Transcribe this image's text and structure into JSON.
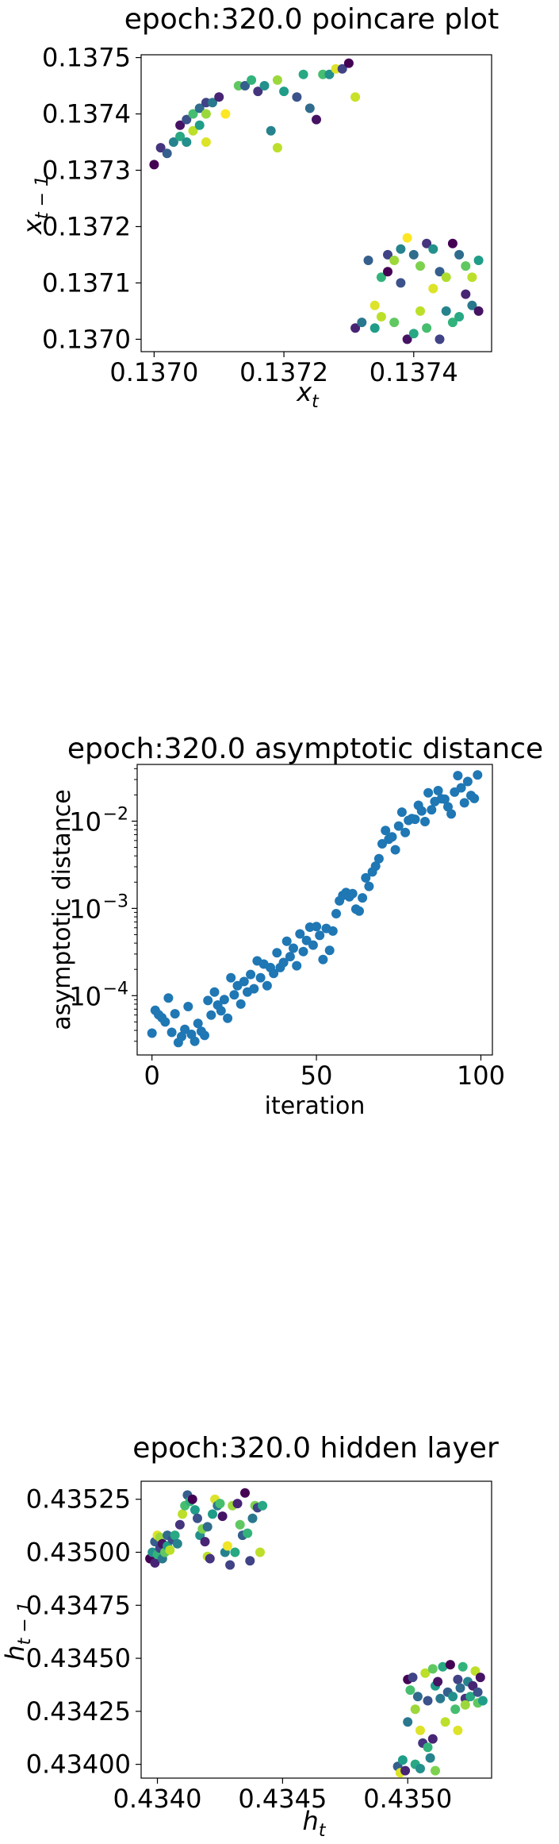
{
  "chart_data": [
    {
      "type": "scatter",
      "title": "epoch:320.0 poincare plot",
      "xlabel_base": "x",
      "xlabel_sub": "t",
      "ylabel_base": "x",
      "ylabel_sub": "t − 1",
      "xlim": [
        0.13698,
        0.13752
      ],
      "ylim": [
        0.136978,
        0.137505
      ],
      "xticks": [
        0.137,
        0.1372,
        0.1374
      ],
      "xtick_labels": [
        "0.1370",
        "0.1372",
        "0.1374"
      ],
      "yticks": [
        0.137,
        0.1371,
        0.1372,
        0.1373,
        0.1374,
        0.1375
      ],
      "ytick_labels": [
        "0.1370",
        "0.1371",
        "0.1372",
        "0.1373",
        "0.1374",
        "0.1375"
      ],
      "yscale": "linear",
      "colormap": "viridis",
      "points": [
        [
          0.137,
          0.13731,
          0
        ],
        [
          0.13701,
          0.13734,
          0.15
        ],
        [
          0.13702,
          0.13733,
          0.3
        ],
        [
          0.13703,
          0.13735,
          0.45
        ],
        [
          0.13704,
          0.13736,
          0.6
        ],
        [
          0.13704,
          0.13738,
          0.05
        ],
        [
          0.13705,
          0.13739,
          0.25
        ],
        [
          0.13705,
          0.13735,
          0.5
        ],
        [
          0.13706,
          0.1374,
          0.7
        ],
        [
          0.13706,
          0.13737,
          0.9
        ],
        [
          0.13707,
          0.13741,
          0.35
        ],
        [
          0.13707,
          0.13738,
          0.55
        ],
        [
          0.13708,
          0.13742,
          0.2
        ],
        [
          0.13708,
          0.1374,
          0.85
        ],
        [
          0.13708,
          0.13735,
          0.95
        ],
        [
          0.13709,
          0.13742,
          0.4
        ],
        [
          0.1371,
          0.13743,
          0.1
        ],
        [
          0.13711,
          0.1374,
          1.0
        ],
        [
          0.13713,
          0.13745,
          0.75
        ],
        [
          0.13714,
          0.13745,
          0.3
        ],
        [
          0.13715,
          0.13746,
          0.65
        ],
        [
          0.13716,
          0.13744,
          0.15
        ],
        [
          0.13717,
          0.13745,
          0.5
        ],
        [
          0.13718,
          0.13737,
          0.45
        ],
        [
          0.13719,
          0.13734,
          0.9
        ],
        [
          0.13719,
          0.13746,
          0.85
        ],
        [
          0.1372,
          0.13744,
          0.55
        ],
        [
          0.13722,
          0.13743,
          0.25
        ],
        [
          0.13723,
          0.13747,
          0.6
        ],
        [
          0.13724,
          0.13741,
          0.35
        ],
        [
          0.13725,
          0.13739,
          0.05
        ],
        [
          0.13726,
          0.13747,
          0.7
        ],
        [
          0.13727,
          0.13747,
          0.5
        ],
        [
          0.13728,
          0.13748,
          0.95
        ],
        [
          0.13729,
          0.13748,
          0.2
        ],
        [
          0.1373,
          0.13749,
          0.0
        ],
        [
          0.13731,
          0.13743,
          0.92
        ],
        [
          0.13731,
          0.13702,
          0.1
        ],
        [
          0.13732,
          0.13703,
          0.4
        ],
        [
          0.13733,
          0.13714,
          0.3
        ],
        [
          0.13734,
          0.13706,
          0.95
        ],
        [
          0.13734,
          0.13702,
          0.55
        ],
        [
          0.13735,
          0.13711,
          0.65
        ],
        [
          0.13735,
          0.13704,
          0.9
        ],
        [
          0.13736,
          0.13715,
          0.2
        ],
        [
          0.13736,
          0.13712,
          0.0
        ],
        [
          0.13737,
          0.13703,
          0.75
        ],
        [
          0.13737,
          0.13714,
          0.85
        ],
        [
          0.13738,
          0.13716,
          0.45
        ],
        [
          0.13738,
          0.1371,
          0.25
        ],
        [
          0.13739,
          0.13718,
          1.0
        ],
        [
          0.13739,
          0.137,
          0.05
        ],
        [
          0.1374,
          0.13701,
          0.6
        ],
        [
          0.1374,
          0.13715,
          0.35
        ],
        [
          0.13741,
          0.13713,
          0.8
        ],
        [
          0.13741,
          0.13705,
          0.9
        ],
        [
          0.13742,
          0.13717,
          0.15
        ],
        [
          0.13742,
          0.13702,
          0.7
        ],
        [
          0.13743,
          0.13716,
          0.5
        ],
        [
          0.13743,
          0.13709,
          0.95
        ],
        [
          0.13744,
          0.13712,
          0.3
        ],
        [
          0.13744,
          0.137,
          0.2
        ],
        [
          0.13745,
          0.13711,
          0.88
        ],
        [
          0.13745,
          0.13705,
          0.45
        ],
        [
          0.13746,
          0.13717,
          0.0
        ],
        [
          0.13746,
          0.13703,
          0.65
        ],
        [
          0.13747,
          0.13715,
          0.35
        ],
        [
          0.13747,
          0.13704,
          0.6
        ],
        [
          0.13748,
          0.13708,
          0.1
        ],
        [
          0.13748,
          0.13713,
          0.75
        ],
        [
          0.13749,
          0.13711,
          0.9
        ],
        [
          0.13749,
          0.13706,
          0.4
        ],
        [
          0.1375,
          0.13714,
          0.55
        ],
        [
          0.1375,
          0.13705,
          0.05
        ]
      ]
    },
    {
      "type": "scatter",
      "title": "epoch:320.0 asymptotic distance",
      "xlabel": "iteration",
      "ylabel": "asymptotic distance",
      "xlim": [
        -4.5,
        103.5
      ],
      "ylim": [
        2.09e-05,
        0.0447
      ],
      "yscale": "log",
      "xticks": [
        0,
        50,
        100
      ],
      "xtick_labels": [
        "0",
        "50",
        "100"
      ],
      "ytick_base": "10",
      "ytick_exponents": [
        "−4",
        "−3",
        "−2"
      ],
      "yticks": [
        0.0001,
        0.001,
        0.01
      ],
      "color": "#1f77b4",
      "x": [
        0,
        1,
        2,
        3,
        4,
        5,
        6,
        7,
        8,
        9,
        10,
        11,
        12,
        13,
        14,
        15,
        16,
        17,
        18,
        19,
        20,
        21,
        22,
        23,
        24,
        25,
        26,
        27,
        28,
        29,
        30,
        31,
        32,
        33,
        34,
        35,
        36,
        37,
        38,
        39,
        40,
        41,
        42,
        43,
        44,
        45,
        46,
        47,
        48,
        49,
        50,
        51,
        52,
        53,
        54,
        55,
        56,
        57,
        58,
        59,
        60,
        61,
        62,
        63,
        64,
        65,
        66,
        67,
        68,
        69,
        70,
        71,
        72,
        73,
        74,
        75,
        76,
        77,
        78,
        79,
        80,
        81,
        82,
        83,
        84,
        85,
        86,
        87,
        88,
        89,
        90,
        91,
        92,
        93,
        94,
        95,
        96,
        97,
        98,
        99
      ],
      "values": [
        3.72e-05,
        6.8e-05,
        6.05e-05,
        5.6e-05,
        5e-05,
        9.4e-05,
        3.8e-05,
        6.2e-05,
        2.9e-05,
        3.4e-05,
        4.1e-05,
        7.5e-05,
        3.6e-05,
        3e-05,
        4.8e-05,
        3.9e-05,
        3.5e-05,
        8.8e-05,
        6e-05,
        0.00011,
        7.8e-05,
        6.7e-05,
        9e-05,
        5.5e-05,
        0.00016,
        0.000102,
        0.00013,
        8e-05,
        0.000145,
        0.00011,
        0.000175,
        0.00012,
        0.00025,
        0.00016,
        0.00023,
        0.00013,
        0.00021,
        0.00018,
        0.00031,
        0.00021,
        0.00024,
        0.00042,
        0.00028,
        0.00035,
        0.00022,
        0.00051,
        0.00032,
        0.00043,
        0.00061,
        0.00038,
        0.00062,
        0.00049,
        0.00026,
        0.00059,
        0.00033,
        0.00055,
        0.00087,
        0.00122,
        0.00141,
        0.00152,
        0.00136,
        0.00148,
        0.00098,
        0.00093,
        0.00132,
        0.00224,
        0.00179,
        0.00262,
        0.00305,
        0.00372,
        0.0055,
        0.0078,
        0.0062,
        0.0066,
        0.0047,
        0.0088,
        0.0127,
        0.0074,
        0.0102,
        0.0107,
        0.0105,
        0.0152,
        0.0131,
        0.0099,
        0.0211,
        0.0135,
        0.0168,
        0.0224,
        0.0181,
        0.0179,
        0.0146,
        0.0121,
        0.0215,
        0.0333,
        0.0241,
        0.0162,
        0.0285,
        0.0197,
        0.0182,
        0.0338
      ]
    },
    {
      "type": "scatter",
      "title": "epoch:320.0 hidden layer",
      "xlabel_base": "h",
      "xlabel_sub": "t",
      "ylabel_base": "h",
      "ylabel_sub": "t − 1",
      "xlim": [
        0.433935,
        0.435335
      ],
      "ylim": [
        0.433935,
        0.435335
      ],
      "xticks": [
        0.434,
        0.4345,
        0.435
      ],
      "xtick_labels": [
        "0.4340",
        "0.4345",
        "0.4350"
      ],
      "yticks": [
        0.434,
        0.43425,
        0.4345,
        0.43475,
        0.435,
        0.43525
      ],
      "ytick_labels": [
        "0.43400",
        "0.43425",
        "0.43450",
        "0.43475",
        "0.43500",
        "0.43525"
      ],
      "yscale": "linear",
      "colormap": "viridis",
      "points": [
        [
          0.43397,
          0.43497,
          0.0
        ],
        [
          0.43398,
          0.435,
          0.5
        ],
        [
          0.43399,
          0.43505,
          0.3
        ],
        [
          0.43399,
          0.43495,
          0.1
        ],
        [
          0.434,
          0.43508,
          0.95
        ],
        [
          0.434,
          0.43499,
          0.65
        ],
        [
          0.43401,
          0.43502,
          0.2
        ],
        [
          0.43401,
          0.43507,
          0.85
        ],
        [
          0.43402,
          0.43497,
          0.4
        ],
        [
          0.43402,
          0.43504,
          0.05
        ],
        [
          0.43403,
          0.435,
          0.75
        ],
        [
          0.43404,
          0.43503,
          0.55
        ],
        [
          0.43404,
          0.43508,
          0.35
        ],
        [
          0.43405,
          0.43501,
          0.9
        ],
        [
          0.43406,
          0.43506,
          0.25
        ],
        [
          0.43407,
          0.43508,
          0.6
        ],
        [
          0.43408,
          0.43504,
          0.45
        ],
        [
          0.43409,
          0.43513,
          0.15
        ],
        [
          0.4341,
          0.43518,
          0.9
        ],
        [
          0.43411,
          0.43522,
          0.7
        ],
        [
          0.43412,
          0.43527,
          0.3
        ],
        [
          0.43413,
          0.43524,
          0.65
        ],
        [
          0.43414,
          0.43525,
          0.0
        ],
        [
          0.43415,
          0.4352,
          0.55
        ],
        [
          0.43416,
          0.43516,
          0.25
        ],
        [
          0.43417,
          0.43508,
          0.5
        ],
        [
          0.43418,
          0.43511,
          0.8
        ],
        [
          0.43419,
          0.43505,
          0.1
        ],
        [
          0.4342,
          0.43512,
          0.35
        ],
        [
          0.4342,
          0.43498,
          0.9
        ],
        [
          0.43421,
          0.43497,
          0.15
        ],
        [
          0.43422,
          0.43518,
          0.55
        ],
        [
          0.43423,
          0.43525,
          0.95
        ],
        [
          0.43424,
          0.43522,
          0.4
        ],
        [
          0.43425,
          0.43523,
          0.7
        ],
        [
          0.43426,
          0.43517,
          0.05
        ],
        [
          0.43427,
          0.435,
          0.45
        ],
        [
          0.43428,
          0.43503,
          0.98
        ],
        [
          0.43429,
          0.43494,
          0.2
        ],
        [
          0.4343,
          0.43522,
          0.85
        ],
        [
          0.43431,
          0.435,
          0.6
        ],
        [
          0.43432,
          0.43523,
          0.1
        ],
        [
          0.43433,
          0.43513,
          0.75
        ],
        [
          0.43434,
          0.43508,
          0.3
        ],
        [
          0.43435,
          0.43528,
          0.0
        ],
        [
          0.43436,
          0.43509,
          0.65
        ],
        [
          0.43437,
          0.43496,
          0.2
        ],
        [
          0.43438,
          0.43516,
          0.4
        ],
        [
          0.43439,
          0.43522,
          0.8
        ],
        [
          0.4344,
          0.43521,
          0.2
        ],
        [
          0.43441,
          0.435,
          0.9
        ],
        [
          0.43442,
          0.43522,
          0.6
        ],
        [
          0.43496,
          0.43399,
          0.3
        ],
        [
          0.43497,
          0.43396,
          0.95
        ],
        [
          0.43498,
          0.43402,
          0.55
        ],
        [
          0.43499,
          0.43397,
          0.1
        ],
        [
          0.435,
          0.4342,
          0.4
        ],
        [
          0.435,
          0.4344,
          0.0
        ],
        [
          0.43501,
          0.43435,
          0.7
        ],
        [
          0.43502,
          0.43441,
          0.2
        ],
        [
          0.43503,
          0.434,
          0.6
        ],
        [
          0.43503,
          0.43426,
          0.85
        ],
        [
          0.43504,
          0.43432,
          0.35
        ],
        [
          0.43505,
          0.43416,
          0.95
        ],
        [
          0.43505,
          0.43398,
          0.5
        ],
        [
          0.43506,
          0.4341,
          0.15
        ],
        [
          0.43507,
          0.43443,
          0.9
        ],
        [
          0.43508,
          0.4343,
          0.25
        ],
        [
          0.43508,
          0.43408,
          0.65
        ],
        [
          0.43509,
          0.43403,
          0.45
        ],
        [
          0.4351,
          0.43445,
          0.75
        ],
        [
          0.4351,
          0.43412,
          0.1
        ],
        [
          0.43511,
          0.43437,
          0.55
        ],
        [
          0.43511,
          0.43397,
          0.8
        ],
        [
          0.43512,
          0.43439,
          0.05
        ],
        [
          0.43513,
          0.43431,
          0.4
        ],
        [
          0.43514,
          0.43446,
          0.6
        ],
        [
          0.43515,
          0.4342,
          0.9
        ],
        [
          0.43516,
          0.43434,
          0.3
        ],
        [
          0.43517,
          0.43447,
          0.0
        ],
        [
          0.43518,
          0.43432,
          0.5
        ],
        [
          0.43519,
          0.43426,
          0.7
        ],
        [
          0.4352,
          0.4344,
          0.2
        ],
        [
          0.4352,
          0.43416,
          0.95
        ],
        [
          0.43521,
          0.43436,
          0.35
        ],
        [
          0.43522,
          0.43446,
          0.65
        ],
        [
          0.43523,
          0.43431,
          0.15
        ],
        [
          0.43523,
          0.43428,
          0.85
        ],
        [
          0.43524,
          0.43439,
          0.45
        ],
        [
          0.43525,
          0.43432,
          0.6
        ],
        [
          0.43526,
          0.43437,
          0.1
        ],
        [
          0.43527,
          0.43444,
          0.9
        ],
        [
          0.43528,
          0.43429,
          0.75
        ],
        [
          0.43528,
          0.43434,
          0.25
        ],
        [
          0.43529,
          0.43441,
          0.05
        ],
        [
          0.4353,
          0.4343,
          0.55
        ]
      ]
    }
  ]
}
